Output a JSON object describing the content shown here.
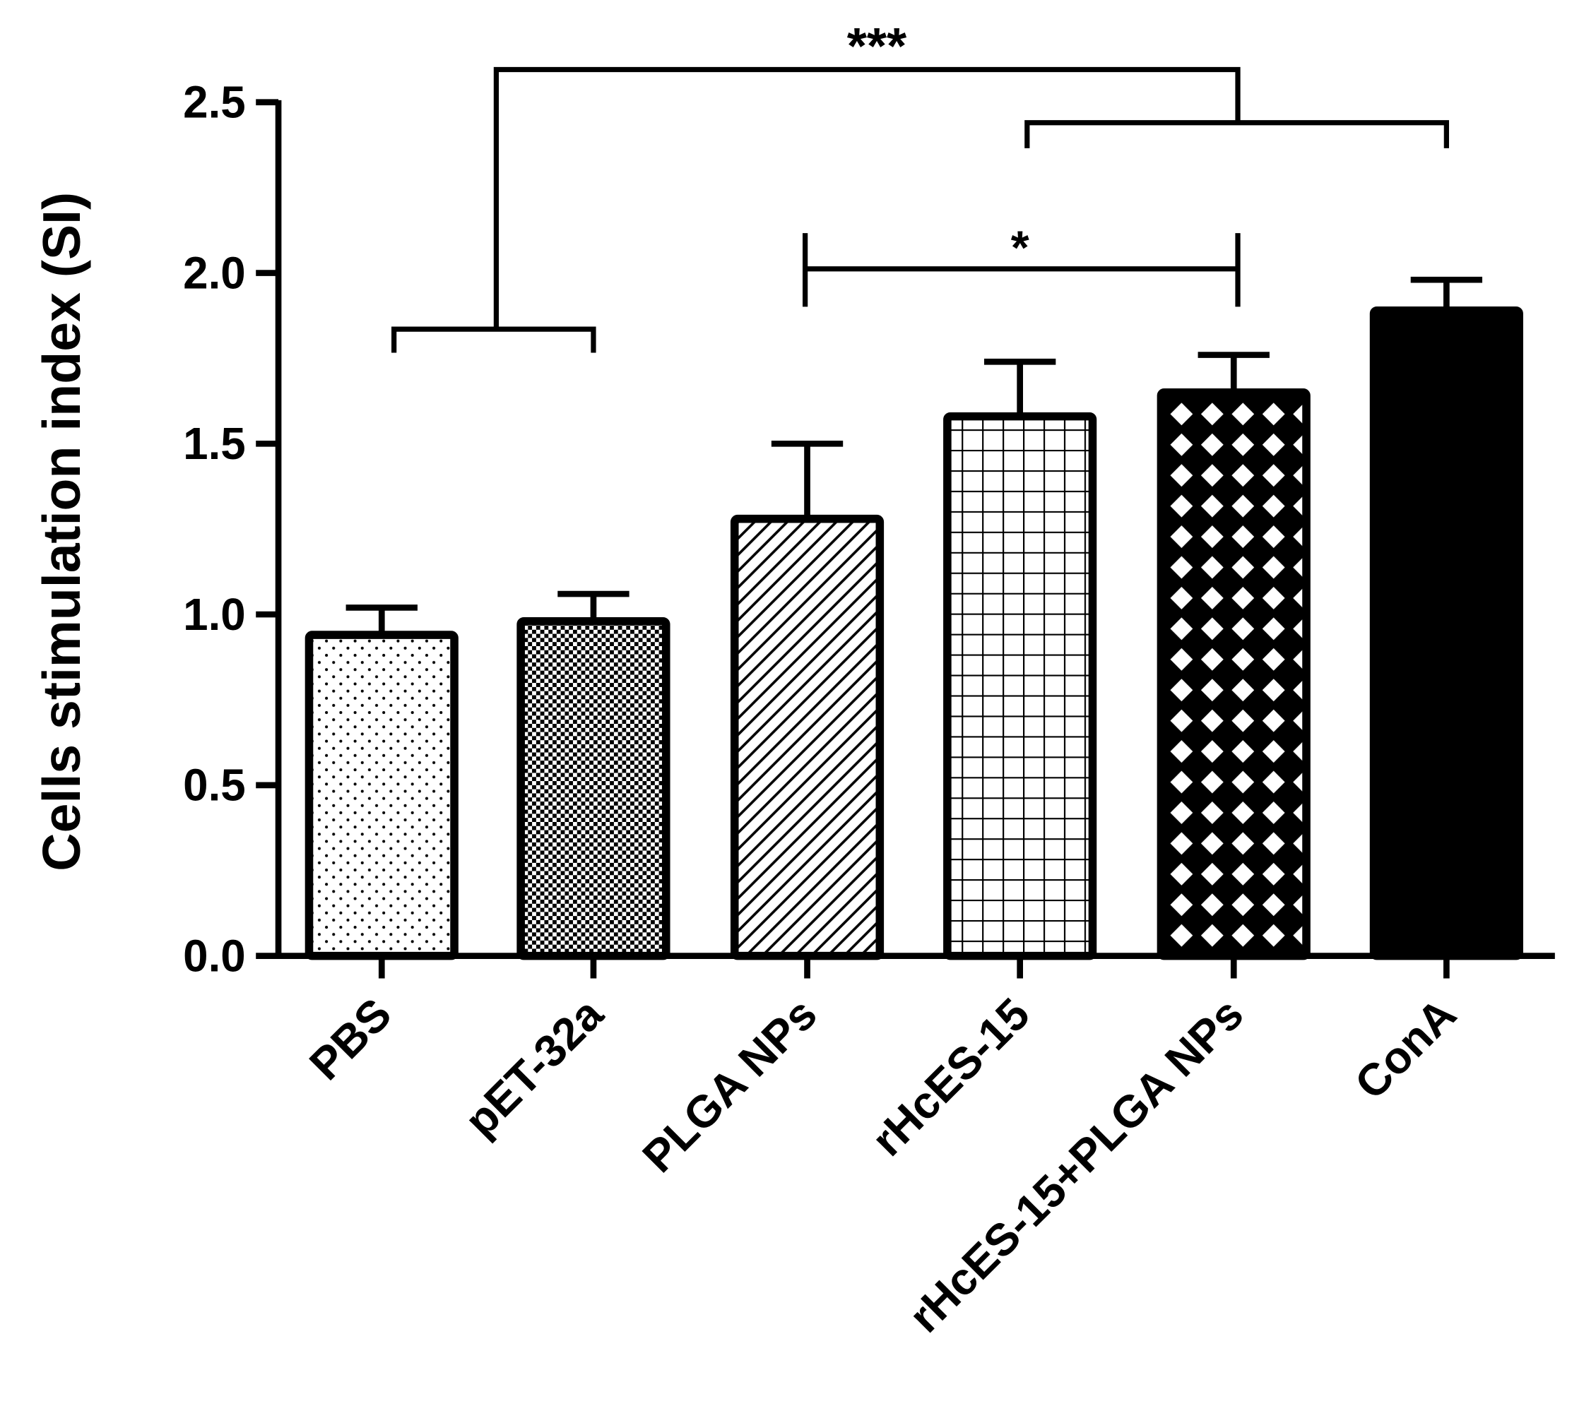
{
  "chart_data": {
    "type": "bar",
    "title": "",
    "xlabel": "",
    "ylabel": "Cells stimulation index (SI)",
    "ylim": [
      0,
      2.5
    ],
    "yticks": [
      "0.0",
      "0.5",
      "1.0",
      "1.5",
      "2.0",
      "2.5"
    ],
    "grid": false,
    "categories": [
      "PBS",
      "pET-32a",
      "PLGA NPs",
      "rHcES-15",
      "rHcES-15+PLGA NPs",
      "ConA"
    ],
    "values": [
      0.94,
      0.98,
      1.28,
      1.58,
      1.65,
      1.89
    ],
    "error_upper": [
      1.02,
      1.06,
      1.5,
      1.74,
      1.76,
      1.98
    ],
    "patterns": [
      "dots",
      "checker",
      "diagonal",
      "grid",
      "diamond",
      "solid"
    ],
    "annotations": [
      {
        "text": "***",
        "from": "PBS, pET-32a",
        "to": "rHcES-15, rHcES-15+PLGA NPs, ConA"
      },
      {
        "text": "*",
        "from": "PLGA NPs",
        "to": "rHcES-15+PLGA NPs"
      }
    ],
    "colors": {
      "bar_stroke": "#000000",
      "background": "#ffffff"
    }
  }
}
